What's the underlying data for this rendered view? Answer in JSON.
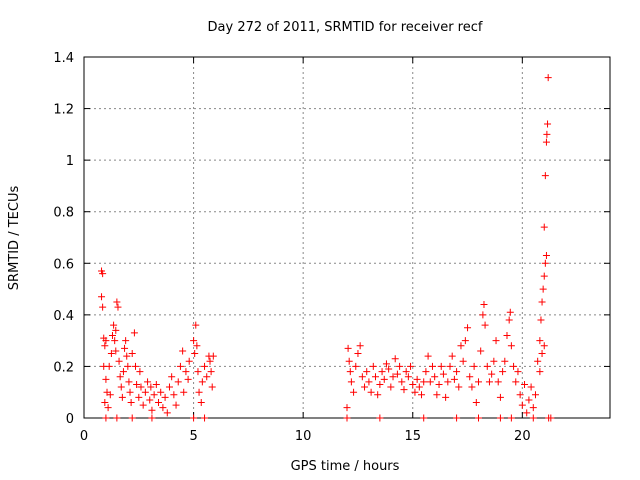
{
  "chart_data": {
    "type": "scatter",
    "title": "Day 272 of 2011, SRMTID for receiver recf",
    "xlabel": "GPS time / hours",
    "ylabel": "SRMTID / TECUs",
    "xlim": [
      0,
      24
    ],
    "ylim": [
      0,
      1.4
    ],
    "xticks": [
      0,
      5,
      10,
      15,
      20
    ],
    "yticks": [
      0,
      0.2,
      0.4,
      0.6,
      0.8,
      1,
      1.2,
      1.4
    ],
    "xtick_labels": [
      "0",
      "5",
      "10",
      "15",
      "20"
    ],
    "ytick_labels": [
      "0",
      "0.2",
      "0.4",
      "0.6",
      "0.8",
      "1",
      "1.2",
      "1.4"
    ],
    "grid": true,
    "marker": "+",
    "color": "#ff0000",
    "series": [
      {
        "name": "SRMTID",
        "points": [
          [
            0.8,
            0.57
          ],
          [
            0.85,
            0.56
          ],
          [
            0.8,
            0.47
          ],
          [
            0.85,
            0.43
          ],
          [
            0.9,
            0.31
          ],
          [
            0.95,
            0.28
          ],
          [
            1.0,
            0.3
          ],
          [
            0.9,
            0.2
          ],
          [
            1.0,
            0.15
          ],
          [
            1.05,
            0.1
          ],
          [
            0.95,
            0.06
          ],
          [
            1.1,
            0.04
          ],
          [
            1.2,
            0.09
          ],
          [
            1.15,
            0.2
          ],
          [
            1.25,
            0.25
          ],
          [
            1.3,
            0.32
          ],
          [
            1.35,
            0.36
          ],
          [
            1.4,
            0.3
          ],
          [
            1.45,
            0.26
          ],
          [
            1.5,
            0.45
          ],
          [
            1.55,
            0.43
          ],
          [
            1.45,
            0.34
          ],
          [
            1.6,
            0.22
          ],
          [
            1.65,
            0.16
          ],
          [
            1.7,
            0.12
          ],
          [
            1.75,
            0.08
          ],
          [
            1.8,
            0.18
          ],
          [
            1.85,
            0.27
          ],
          [
            1.9,
            0.3
          ],
          [
            1.95,
            0.24
          ],
          [
            2.0,
            0.2
          ],
          [
            2.05,
            0.14
          ],
          [
            2.1,
            0.1
          ],
          [
            2.15,
            0.06
          ],
          [
            2.2,
            0.25
          ],
          [
            2.3,
            0.33
          ],
          [
            2.35,
            0.2
          ],
          [
            2.4,
            0.13
          ],
          [
            2.5,
            0.08
          ],
          [
            2.55,
            0.18
          ],
          [
            2.6,
            0.12
          ],
          [
            2.7,
            0.05
          ],
          [
            2.8,
            0.1
          ],
          [
            2.9,
            0.14
          ],
          [
            3.0,
            0.07
          ],
          [
            3.05,
            0.12
          ],
          [
            3.1,
            0.03
          ],
          [
            3.2,
            0.09
          ],
          [
            3.3,
            0.13
          ],
          [
            3.4,
            0.06
          ],
          [
            3.5,
            0.1
          ],
          [
            3.6,
            0.04
          ],
          [
            3.7,
            0.08
          ],
          [
            3.8,
            0.02
          ],
          [
            3.9,
            0.12
          ],
          [
            4.0,
            0.16
          ],
          [
            4.1,
            0.09
          ],
          [
            4.2,
            0.05
          ],
          [
            4.3,
            0.14
          ],
          [
            4.4,
            0.2
          ],
          [
            4.5,
            0.26
          ],
          [
            4.55,
            0.1
          ],
          [
            4.65,
            0.18
          ],
          [
            4.75,
            0.15
          ],
          [
            4.8,
            0.22
          ],
          [
            5.0,
            0.3
          ],
          [
            5.05,
            0.25
          ],
          [
            5.1,
            0.36
          ],
          [
            5.15,
            0.28
          ],
          [
            5.2,
            0.18
          ],
          [
            5.25,
            0.1
          ],
          [
            5.35,
            0.06
          ],
          [
            5.4,
            0.14
          ],
          [
            5.5,
            0.2
          ],
          [
            5.6,
            0.16
          ],
          [
            5.7,
            0.24
          ],
          [
            5.75,
            0.22
          ],
          [
            5.8,
            0.18
          ],
          [
            5.85,
            0.12
          ],
          [
            5.9,
            0.24
          ],
          [
            1.0,
            0.0
          ],
          [
            1.5,
            0.0
          ],
          [
            2.2,
            0.0
          ],
          [
            3.1,
            0.0
          ],
          [
            5.0,
            0.0
          ],
          [
            5.5,
            0.0
          ],
          [
            12.0,
            0.04
          ],
          [
            12.05,
            0.27
          ],
          [
            12.1,
            0.22
          ],
          [
            12.15,
            0.18
          ],
          [
            12.2,
            0.14
          ],
          [
            12.3,
            0.1
          ],
          [
            12.4,
            0.2
          ],
          [
            12.5,
            0.25
          ],
          [
            12.6,
            0.28
          ],
          [
            12.7,
            0.16
          ],
          [
            12.8,
            0.12
          ],
          [
            12.9,
            0.18
          ],
          [
            13.0,
            0.14
          ],
          [
            13.1,
            0.1
          ],
          [
            13.2,
            0.2
          ],
          [
            13.3,
            0.16
          ],
          [
            13.4,
            0.09
          ],
          [
            13.5,
            0.13
          ],
          [
            13.6,
            0.18
          ],
          [
            13.7,
            0.15
          ],
          [
            13.8,
            0.21
          ],
          [
            13.9,
            0.19
          ],
          [
            14.0,
            0.12
          ],
          [
            14.1,
            0.16
          ],
          [
            14.2,
            0.23
          ],
          [
            14.3,
            0.17
          ],
          [
            14.4,
            0.2
          ],
          [
            14.5,
            0.14
          ],
          [
            14.6,
            0.11
          ],
          [
            14.7,
            0.18
          ],
          [
            14.8,
            0.16
          ],
          [
            14.9,
            0.2
          ],
          [
            15.0,
            0.13
          ],
          [
            15.1,
            0.1
          ],
          [
            15.2,
            0.15
          ],
          [
            15.3,
            0.12
          ],
          [
            15.4,
            0.09
          ],
          [
            15.5,
            0.14
          ],
          [
            15.6,
            0.18
          ],
          [
            15.7,
            0.24
          ],
          [
            15.8,
            0.14
          ],
          [
            15.9,
            0.2
          ],
          [
            16.0,
            0.16
          ],
          [
            16.1,
            0.09
          ],
          [
            16.2,
            0.13
          ],
          [
            16.3,
            0.2
          ],
          [
            16.4,
            0.17
          ],
          [
            16.5,
            0.08
          ],
          [
            16.6,
            0.14
          ],
          [
            16.7,
            0.2
          ],
          [
            16.8,
            0.24
          ],
          [
            16.9,
            0.15
          ],
          [
            17.0,
            0.18
          ],
          [
            17.1,
            0.12
          ],
          [
            17.2,
            0.28
          ],
          [
            17.3,
            0.22
          ],
          [
            17.4,
            0.3
          ],
          [
            17.5,
            0.35
          ],
          [
            17.6,
            0.16
          ],
          [
            17.7,
            0.12
          ],
          [
            17.8,
            0.2
          ],
          [
            17.9,
            0.06
          ],
          [
            18.0,
            0.14
          ],
          [
            18.1,
            0.26
          ],
          [
            18.2,
            0.4
          ],
          [
            18.25,
            0.44
          ],
          [
            18.3,
            0.36
          ],
          [
            18.4,
            0.2
          ],
          [
            18.5,
            0.14
          ],
          [
            18.6,
            0.17
          ],
          [
            18.7,
            0.22
          ],
          [
            18.8,
            0.3
          ],
          [
            18.9,
            0.14
          ],
          [
            19.0,
            0.08
          ],
          [
            19.1,
            0.18
          ],
          [
            19.2,
            0.22
          ],
          [
            19.3,
            0.32
          ],
          [
            19.4,
            0.38
          ],
          [
            19.45,
            0.41
          ],
          [
            19.5,
            0.28
          ],
          [
            19.6,
            0.2
          ],
          [
            19.7,
            0.14
          ],
          [
            19.8,
            0.18
          ],
          [
            19.9,
            0.09
          ],
          [
            20.0,
            0.05
          ],
          [
            20.1,
            0.13
          ],
          [
            20.2,
            0.02
          ],
          [
            20.3,
            0.07
          ],
          [
            20.4,
            0.12
          ],
          [
            20.5,
            0.04
          ],
          [
            20.6,
            0.09
          ],
          [
            20.7,
            0.22
          ],
          [
            20.8,
            0.3
          ],
          [
            20.85,
            0.38
          ],
          [
            20.9,
            0.45
          ],
          [
            20.95,
            0.5
          ],
          [
            21.0,
            0.55
          ],
          [
            21.05,
            0.6
          ],
          [
            21.1,
            0.63
          ],
          [
            21.0,
            0.74
          ],
          [
            21.05,
            0.94
          ],
          [
            21.1,
            1.07
          ],
          [
            21.12,
            1.1
          ],
          [
            21.15,
            1.14
          ],
          [
            21.18,
            1.32
          ],
          [
            20.9,
            0.25
          ],
          [
            20.8,
            0.18
          ],
          [
            21.0,
            0.28
          ],
          [
            12.0,
            0.0
          ],
          [
            13.5,
            0.0
          ],
          [
            15.5,
            0.0
          ],
          [
            17.0,
            0.0
          ],
          [
            18.0,
            0.0
          ],
          [
            19.0,
            0.0
          ],
          [
            19.5,
            0.0
          ],
          [
            20.5,
            0.0
          ],
          [
            21.2,
            0.0
          ],
          [
            21.3,
            0.0
          ]
        ]
      }
    ]
  }
}
